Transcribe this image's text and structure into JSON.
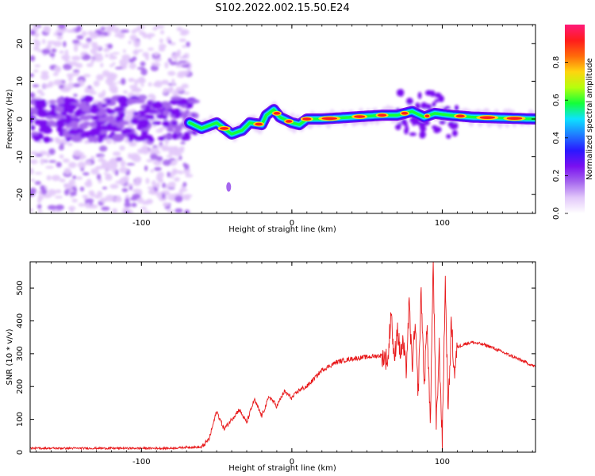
{
  "figure": {
    "title": "S102.2022.002.15.50.E24"
  },
  "colors": {
    "snr_line": "#e8191b",
    "axis": "#000000",
    "colormap": [
      "#ffffff",
      "#e2c8fa",
      "#a566ee",
      "#7a10f0",
      "#2a18ff",
      "#1f7dff",
      "#0de2ff",
      "#13ff3a",
      "#b5ff0d",
      "#ffd50f",
      "#ff6a0a",
      "#ff1c1c",
      "#ff1a7a"
    ]
  },
  "chart_data": [
    {
      "type": "heatmap",
      "title": "S102.2022.002.15.50.E24",
      "xlabel": "Height of straight line (km)",
      "ylabel": "Frequency (Hz)",
      "xlim": [
        -174,
        162
      ],
      "ylim": [
        -25,
        25
      ],
      "xticks": [
        -100,
        0,
        100
      ],
      "yticks": [
        -20,
        -10,
        0,
        10,
        20
      ],
      "colorbar": {
        "label": "Normalized spectral amplitude",
        "range": [
          0.0,
          1.0
        ],
        "ticks": [
          0.0,
          0.2,
          0.4,
          0.6,
          0.8
        ]
      },
      "ridge": [
        {
          "x": -68,
          "y": -1.0
        },
        {
          "x": -60,
          "y": -2.5
        },
        {
          "x": -50,
          "y": -1.0
        },
        {
          "x": -40,
          "y": -4.0
        },
        {
          "x": -33,
          "y": -3.0
        },
        {
          "x": -28,
          "y": -1.0
        },
        {
          "x": -20,
          "y": -1.5
        },
        {
          "x": -17,
          "y": 1.0
        },
        {
          "x": -12,
          "y": 2.5
        },
        {
          "x": -8,
          "y": 0.5
        },
        {
          "x": 0,
          "y": -1.0
        },
        {
          "x": 5,
          "y": -1.5
        },
        {
          "x": 10,
          "y": 0.0
        },
        {
          "x": 20,
          "y": 0.0
        },
        {
          "x": 40,
          "y": 0.5
        },
        {
          "x": 60,
          "y": 1.0
        },
        {
          "x": 70,
          "y": 1.0
        },
        {
          "x": 80,
          "y": 2.0
        },
        {
          "x": 88,
          "y": 0.5
        },
        {
          "x": 95,
          "y": 1.5
        },
        {
          "x": 105,
          "y": 1.0
        },
        {
          "x": 120,
          "y": 0.5
        },
        {
          "x": 162,
          "y": 0.0
        }
      ]
    },
    {
      "type": "line",
      "xlabel": "Height of straight line (km)",
      "ylabel": "SNR (10 * v/v)",
      "xlim": [
        -174,
        162
      ],
      "ylim": [
        0,
        580
      ],
      "xticks": [
        -100,
        0,
        100
      ],
      "yticks": [
        0,
        100,
        200,
        300,
        400,
        500
      ],
      "series": [
        {
          "x": [
            -174,
            -160,
            -140,
            -120,
            -100,
            -80,
            -70,
            -60,
            -55,
            -50,
            -45,
            -40,
            -35,
            -30,
            -25,
            -20,
            -15,
            -10,
            -5,
            0,
            5,
            10,
            15,
            20,
            30,
            40,
            50,
            60,
            64,
            66,
            68,
            70,
            72,
            74,
            76,
            78,
            80,
            82,
            84,
            86,
            88,
            90,
            92,
            94,
            96,
            98,
            100,
            102,
            104,
            106,
            108,
            110,
            115,
            120,
            130,
            140,
            150,
            162
          ],
          "y": [
            12,
            12,
            12,
            12,
            12,
            12,
            15,
            15,
            40,
            125,
            70,
            100,
            130,
            90,
            160,
            110,
            170,
            140,
            185,
            165,
            190,
            200,
            225,
            250,
            275,
            285,
            290,
            295,
            280,
            440,
            270,
            380,
            300,
            330,
            250,
            450,
            260,
            380,
            180,
            490,
            200,
            400,
            80,
            575,
            70,
            320,
            30,
            520,
            120,
            400,
            240,
            320,
            330,
            335,
            325,
            305,
            285,
            260
          ]
        }
      ]
    }
  ]
}
